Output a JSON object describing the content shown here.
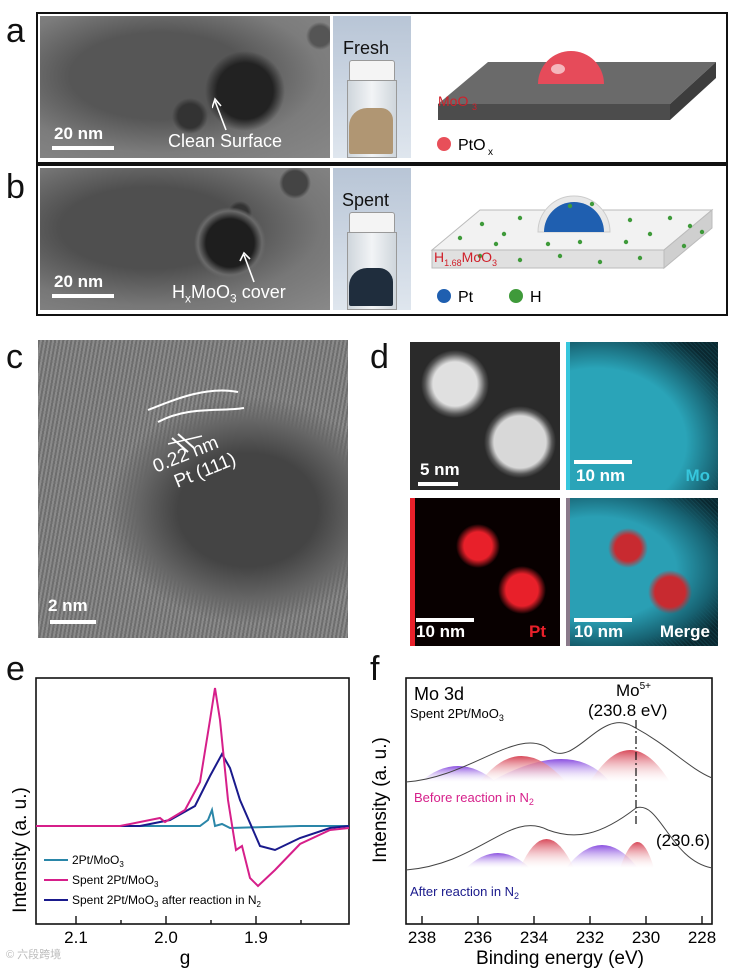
{
  "panels": {
    "a": {
      "label": "a",
      "scale": "20 nm",
      "annotation": "Clean Surface",
      "vial_label": "Fresh",
      "support_label": "MoO",
      "support_sub": "3",
      "legend_text": "PtO",
      "legend_sub": "x"
    },
    "b": {
      "label": "b",
      "scale": "20 nm",
      "annotation": "H",
      "annotation_sub1": "x",
      "annotation_mid": "MoO",
      "annotation_sub2": "3",
      "annotation_end": " cover",
      "vial_label": "Spent",
      "support_label": "H",
      "support_sub1": "1.68",
      "support_mid": "MoO",
      "support_sub2": "3",
      "legend_pt": "Pt",
      "legend_h": "H"
    },
    "c": {
      "label": "c",
      "lattice": "0.22 nm",
      "plane": "Pt (111)",
      "scale": "2 nm"
    },
    "d": {
      "label": "d",
      "tiles": [
        {
          "scale": "5 nm",
          "element": ""
        },
        {
          "scale": "10 nm",
          "element": "Mo"
        },
        {
          "scale": "10 nm",
          "element": "Pt"
        },
        {
          "scale": "10 nm",
          "element": "Merge"
        }
      ]
    },
    "e": {
      "label": "e",
      "ylabel": "Intensity (a. u.)",
      "xlabel": "g",
      "xticks": [
        "2.1",
        "2.0",
        "1.9"
      ],
      "legend": [
        {
          "text": "2Pt/MoO",
          "sub": "3",
          "color": "#2a86a8"
        },
        {
          "text": "Spent 2Pt/MoO",
          "sub": "3",
          "color": "#d61f8a"
        },
        {
          "text": "Spent 2Pt/MoO",
          "sub": "3",
          "extra": " after reaction in N",
          "sub2": "2",
          "color": "#1a1a8c"
        }
      ]
    },
    "f": {
      "label": "f",
      "ylabel": "Intensity (a. u.)",
      "xlabel": "Binding energy (eV)",
      "xticks": [
        "238",
        "236",
        "234",
        "232",
        "230",
        "228"
      ],
      "title": "Mo 3d",
      "subtitle": "Spent 2Pt/MoO",
      "subtitle_sub": "3",
      "peak_label": "Mo",
      "peak_sup": "5+",
      "peak_value": "(230.8 eV)",
      "peak2_value": "(230.6)",
      "upper_label": "Before reaction in N",
      "upper_sub": "2",
      "lower_label": "After reaction in N",
      "lower_sub": "2"
    }
  },
  "watermark": "© 六段跨境",
  "colors": {
    "pink": "#d61f8a",
    "teal": "#2a86a8",
    "navy": "#1a1a8c",
    "red": "#e8202a",
    "cyan": "#36c6dc"
  }
}
